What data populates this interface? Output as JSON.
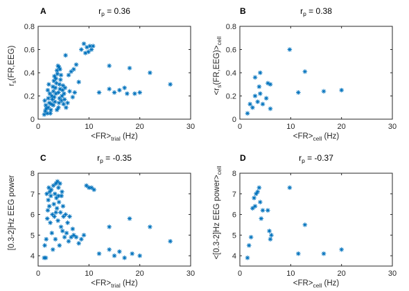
{
  "colors": {
    "marker": "#0072BD",
    "axis": "#262626",
    "text": "#000000"
  },
  "chart_data": [
    {
      "type": "scatter",
      "panel": "A",
      "title": {
        "main": "r",
        "sub": "p",
        "rest": " = 0.36"
      },
      "xlabel": {
        "main": "<FR>",
        "sub": "trial",
        "rest": " (Hz)"
      },
      "ylabel": {
        "main": "r",
        "sub": "s",
        "rest": "(FR,EEG)"
      },
      "xlim": [
        0,
        30
      ],
      "ylim": [
        0,
        0.8
      ],
      "xticks": [
        0,
        10,
        20,
        30
      ],
      "yticks": [
        0,
        0.2,
        0.4,
        0.6,
        0.8
      ],
      "xtick_labels": [
        "0",
        "10",
        "20",
        "30"
      ],
      "ytick_labels": [
        "0",
        "0.2",
        "0.4",
        "0.6",
        "0.8"
      ],
      "points": [
        [
          1.2,
          0.04
        ],
        [
          1.4,
          0.07
        ],
        [
          1.6,
          0.09
        ],
        [
          1.5,
          0.12
        ],
        [
          1.8,
          0.05
        ],
        [
          2.0,
          0.1
        ],
        [
          2.2,
          0.14
        ],
        [
          2.0,
          0.18
        ],
        [
          2.3,
          0.22
        ],
        [
          1.9,
          0.25
        ],
        [
          2.5,
          0.08
        ],
        [
          2.6,
          0.13
        ],
        [
          2.8,
          0.17
        ],
        [
          2.7,
          0.2
        ],
        [
          3.0,
          0.24
        ],
        [
          2.9,
          0.28
        ],
        [
          3.1,
          0.33
        ],
        [
          3.0,
          0.12
        ],
        [
          3.3,
          0.15
        ],
        [
          3.2,
          0.19
        ],
        [
          3.5,
          0.22
        ],
        [
          3.4,
          0.27
        ],
        [
          3.6,
          0.31
        ],
        [
          3.5,
          0.35
        ],
        [
          3.8,
          0.39
        ],
        [
          3.7,
          0.42
        ],
        [
          3.9,
          0.46
        ],
        [
          4.0,
          0.1
        ],
        [
          4.1,
          0.14
        ],
        [
          4.2,
          0.18
        ],
        [
          4.0,
          0.23
        ],
        [
          4.3,
          0.26
        ],
        [
          4.2,
          0.3
        ],
        [
          4.4,
          0.34
        ],
        [
          4.5,
          0.38
        ],
        [
          4.3,
          0.43
        ],
        [
          4.6,
          0.16
        ],
        [
          4.7,
          0.2
        ],
        [
          4.8,
          0.25
        ],
        [
          4.9,
          0.29
        ],
        [
          5.0,
          0.13
        ],
        [
          5.2,
          0.17
        ],
        [
          5.1,
          0.22
        ],
        [
          5.4,
          0.55
        ],
        [
          5.5,
          0.1
        ],
        [
          5.8,
          0.14
        ],
        [
          6.0,
          0.38
        ],
        [
          6.2,
          0.24
        ],
        [
          6.5,
          0.41
        ],
        [
          6.8,
          0.19
        ],
        [
          7.0,
          0.43
        ],
        [
          7.2,
          0.23
        ],
        [
          7.5,
          0.47
        ],
        [
          8.0,
          0.32
        ],
        [
          8.5,
          0.6
        ],
        [
          9.0,
          0.65
        ],
        [
          9.3,
          0.57
        ],
        [
          9.6,
          0.62
        ],
        [
          9.9,
          0.58
        ],
        [
          10.2,
          0.63
        ],
        [
          10.5,
          0.6
        ],
        [
          10.8,
          0.63
        ],
        [
          12.0,
          0.23
        ],
        [
          14.0,
          0.46
        ],
        [
          14.0,
          0.26
        ],
        [
          15.0,
          0.23
        ],
        [
          16.0,
          0.25
        ],
        [
          17.0,
          0.27
        ],
        [
          17.5,
          0.22
        ],
        [
          18.0,
          0.44
        ],
        [
          19.0,
          0.22
        ],
        [
          20.0,
          0.23
        ],
        [
          22.0,
          0.4
        ],
        [
          26.0,
          0.3
        ],
        [
          1.3,
          0.16
        ],
        [
          2.1,
          0.3
        ],
        [
          3.2,
          0.37
        ],
        [
          4.1,
          0.45
        ],
        [
          2.4,
          0.05
        ],
        [
          3.7,
          0.08
        ],
        [
          5.3,
          0.27
        ]
      ]
    },
    {
      "type": "scatter",
      "panel": "B",
      "title": {
        "main": "r",
        "sub": "p",
        "rest": " = 0.38"
      },
      "xlabel": {
        "main": "<FR>",
        "sub": "cell",
        "rest": " (Hz)"
      },
      "ylabel": {
        "main": "<r",
        "sub": "s",
        "rest": "(FR,EEG)>",
        "sub2": "cell"
      },
      "xlim": [
        0,
        30
      ],
      "ylim": [
        0,
        0.8
      ],
      "xticks": [
        0,
        10,
        20,
        30
      ],
      "yticks": [
        0,
        0.2,
        0.4,
        0.6,
        0.8
      ],
      "xtick_labels": [
        "0",
        "10",
        "20",
        "30"
      ],
      "ytick_labels": [
        "0",
        "0.2",
        "0.4",
        "0.6",
        "0.8"
      ],
      "points": [
        [
          1.5,
          0.05
        ],
        [
          2.0,
          0.13
        ],
        [
          2.5,
          0.1
        ],
        [
          3.0,
          0.2
        ],
        [
          3.0,
          0.36
        ],
        [
          3.5,
          0.15
        ],
        [
          3.8,
          0.28
        ],
        [
          4.0,
          0.4
        ],
        [
          4.0,
          0.22
        ],
        [
          4.5,
          0.13
        ],
        [
          5.2,
          0.18
        ],
        [
          5.5,
          0.31
        ],
        [
          6.0,
          0.09
        ],
        [
          6.0,
          0.3
        ],
        [
          9.8,
          0.6
        ],
        [
          11.5,
          0.23
        ],
        [
          12.8,
          0.41
        ],
        [
          16.5,
          0.24
        ],
        [
          20.0,
          0.25
        ]
      ]
    },
    {
      "type": "scatter",
      "panel": "C",
      "title": {
        "main": "r",
        "sub": "p",
        "rest": " = -0.35"
      },
      "xlabel": {
        "main": "<FR>",
        "sub": "trial",
        "rest": " (Hz)"
      },
      "ylabel": {
        "main": "[0.3-2]Hz EEG power",
        "sub": "",
        "rest": ""
      },
      "xlim": [
        0,
        30
      ],
      "ylim": [
        3.5,
        8
      ],
      "xticks": [
        0,
        10,
        20,
        30
      ],
      "yticks": [
        4,
        5,
        6,
        7,
        8
      ],
      "xtick_labels": [
        "0",
        "10",
        "20",
        "30"
      ],
      "ytick_labels": [
        "4",
        "5",
        "6",
        "7",
        "8"
      ],
      "points": [
        [
          1.2,
          3.9
        ],
        [
          1.5,
          3.9
        ],
        [
          1.3,
          4.5
        ],
        [
          1.6,
          4.8
        ],
        [
          1.8,
          5.8
        ],
        [
          1.9,
          6.2
        ],
        [
          2.0,
          6.7
        ],
        [
          1.7,
          7.0
        ],
        [
          2.2,
          6.4
        ],
        [
          2.3,
          7.1
        ],
        [
          2.5,
          6.9
        ],
        [
          2.4,
          5.6
        ],
        [
          2.6,
          7.2
        ],
        [
          2.8,
          6.0
        ],
        [
          2.7,
          5.1
        ],
        [
          3.0,
          7.4
        ],
        [
          3.1,
          6.5
        ],
        [
          3.2,
          5.9
        ],
        [
          3.3,
          7.0
        ],
        [
          3.4,
          4.8
        ],
        [
          3.5,
          7.5
        ],
        [
          3.6,
          6.8
        ],
        [
          3.7,
          6.3
        ],
        [
          3.8,
          7.6
        ],
        [
          3.9,
          5.7
        ],
        [
          4.0,
          7.3
        ],
        [
          4.1,
          6.6
        ],
        [
          4.2,
          4.5
        ],
        [
          4.3,
          7.5
        ],
        [
          4.4,
          6.1
        ],
        [
          4.5,
          5.4
        ],
        [
          4.6,
          6.9
        ],
        [
          4.7,
          7.1
        ],
        [
          4.8,
          5.2
        ],
        [
          4.9,
          6.4
        ],
        [
          5.0,
          5.9
        ],
        [
          5.2,
          4.9
        ],
        [
          5.4,
          6.0
        ],
        [
          5.6,
          5.1
        ],
        [
          5.8,
          5.6
        ],
        [
          6.0,
          4.7
        ],
        [
          6.2,
          5.9
        ],
        [
          6.5,
          4.9
        ],
        [
          6.8,
          5.3
        ],
        [
          7.0,
          5.0
        ],
        [
          7.5,
          4.9
        ],
        [
          8.0,
          4.6
        ],
        [
          8.5,
          4.8
        ],
        [
          9.0,
          5.0
        ],
        [
          9.5,
          7.4
        ],
        [
          10.0,
          7.3
        ],
        [
          10.5,
          7.3
        ],
        [
          11.0,
          7.2
        ],
        [
          12.0,
          4.1
        ],
        [
          14.0,
          5.4
        ],
        [
          14.0,
          4.3
        ],
        [
          15.0,
          4.0
        ],
        [
          16.0,
          4.2
        ],
        [
          17.0,
          3.9
        ],
        [
          18.0,
          5.8
        ],
        [
          18.5,
          4.1
        ],
        [
          20.0,
          4.0
        ],
        [
          22.0,
          5.4
        ],
        [
          26.0,
          4.7
        ],
        [
          2.1,
          7.3
        ],
        [
          3.5,
          6.1
        ],
        [
          4.0,
          6.9
        ],
        [
          2.9,
          4.3
        ]
      ]
    },
    {
      "type": "scatter",
      "panel": "D",
      "title": {
        "main": "r",
        "sub": "p",
        "rest": " = -0.37"
      },
      "xlabel": {
        "main": "<FR>",
        "sub": "cell",
        "rest": " (Hz)"
      },
      "ylabel": {
        "main": "<[0.3-2]Hz EEG power>",
        "sub": "",
        "rest": "",
        "sub2": "cell"
      },
      "xlim": [
        0,
        30
      ],
      "ylim": [
        3.5,
        8
      ],
      "xticks": [
        0,
        10,
        20,
        30
      ],
      "yticks": [
        4,
        5,
        6,
        7,
        8
      ],
      "xtick_labels": [
        "0",
        "10",
        "20",
        "30"
      ],
      "ytick_labels": [
        "4",
        "5",
        "6",
        "7",
        "8"
      ],
      "points": [
        [
          1.5,
          3.9
        ],
        [
          1.8,
          4.5
        ],
        [
          2.2,
          4.9
        ],
        [
          2.5,
          6.3
        ],
        [
          2.8,
          6.8
        ],
        [
          3.0,
          6.4
        ],
        [
          3.2,
          7.0
        ],
        [
          3.5,
          7.1
        ],
        [
          3.8,
          7.3
        ],
        [
          4.0,
          6.6
        ],
        [
          4.2,
          5.8
        ],
        [
          4.5,
          6.2
        ],
        [
          5.5,
          6.2
        ],
        [
          5.8,
          5.2
        ],
        [
          6.0,
          4.8
        ],
        [
          6.2,
          5.0
        ],
        [
          9.8,
          7.3
        ],
        [
          11.5,
          4.1
        ],
        [
          12.8,
          5.5
        ],
        [
          16.5,
          4.1
        ],
        [
          20.0,
          4.3
        ]
      ]
    }
  ]
}
